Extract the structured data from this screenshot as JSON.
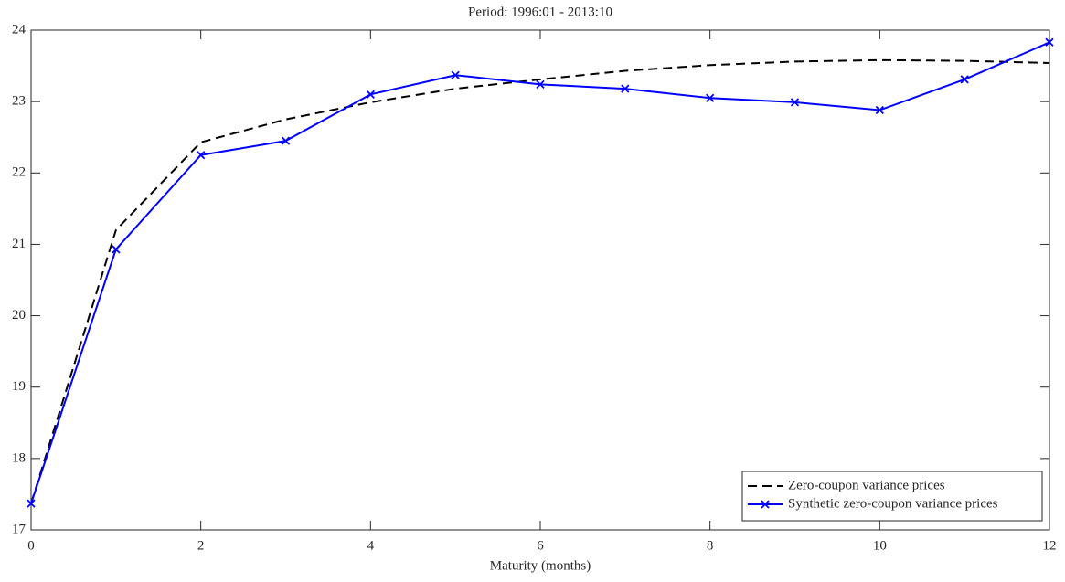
{
  "chart_data": {
    "type": "line",
    "title": "Period: 1996:01 - 2013:10",
    "x_label": "Maturity (months)",
    "x": [
      0,
      1,
      2,
      3,
      4,
      5,
      6,
      7,
      8,
      9,
      10,
      11,
      12
    ],
    "series": [
      {
        "name": "Zero-coupon variance prices",
        "color": "#000000",
        "style": "dashed",
        "marker": "none",
        "values": [
          17.37,
          21.2,
          22.43,
          22.75,
          22.99,
          23.18,
          23.31,
          23.43,
          23.51,
          23.56,
          23.58,
          23.57,
          23.54
        ]
      },
      {
        "name": "Synthetic zero-coupon variance prices",
        "color": "#0000ff",
        "style": "solid",
        "marker": "x",
        "values": [
          17.37,
          20.93,
          22.25,
          22.45,
          23.1,
          23.37,
          23.24,
          23.18,
          23.05,
          22.99,
          22.88,
          23.31,
          23.83
        ]
      }
    ],
    "xlim": [
      0,
      12
    ],
    "xticks": [
      0,
      2,
      4,
      6,
      8,
      10,
      12
    ],
    "ylim": [
      17,
      24
    ],
    "yticks": [
      17,
      18,
      19,
      20,
      21,
      22,
      23,
      24
    ],
    "grid": false,
    "legend": "lower right"
  }
}
